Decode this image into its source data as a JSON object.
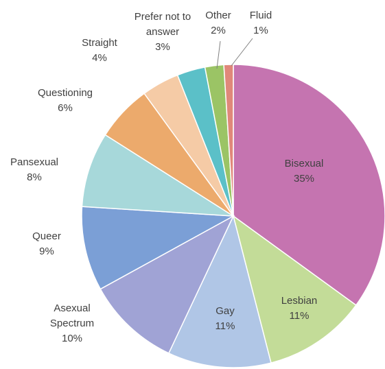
{
  "chart_data": {
    "type": "pie",
    "categories": [
      "Bisexual",
      "Lesbian",
      "Gay",
      "Asexual Spectrum",
      "Queer",
      "Pansexual",
      "Questioning",
      "Straight",
      "Prefer not to answer",
      "Other",
      "Fluid"
    ],
    "values": [
      35,
      11,
      11,
      10,
      9,
      8,
      6,
      4,
      3,
      2,
      1
    ],
    "value_labels": [
      "35%",
      "11%",
      "11%",
      "10%",
      "9%",
      "8%",
      "6%",
      "4%",
      "3%",
      "2%",
      "1%"
    ],
    "colors": [
      "#c574b0",
      "#c3dc98",
      "#b0c6e6",
      "#a0a3d5",
      "#7b9fd6",
      "#a7d8da",
      "#ecaa6c",
      "#f5cba6",
      "#5bc0c8",
      "#9bc465",
      "#e0887a"
    ]
  }
}
